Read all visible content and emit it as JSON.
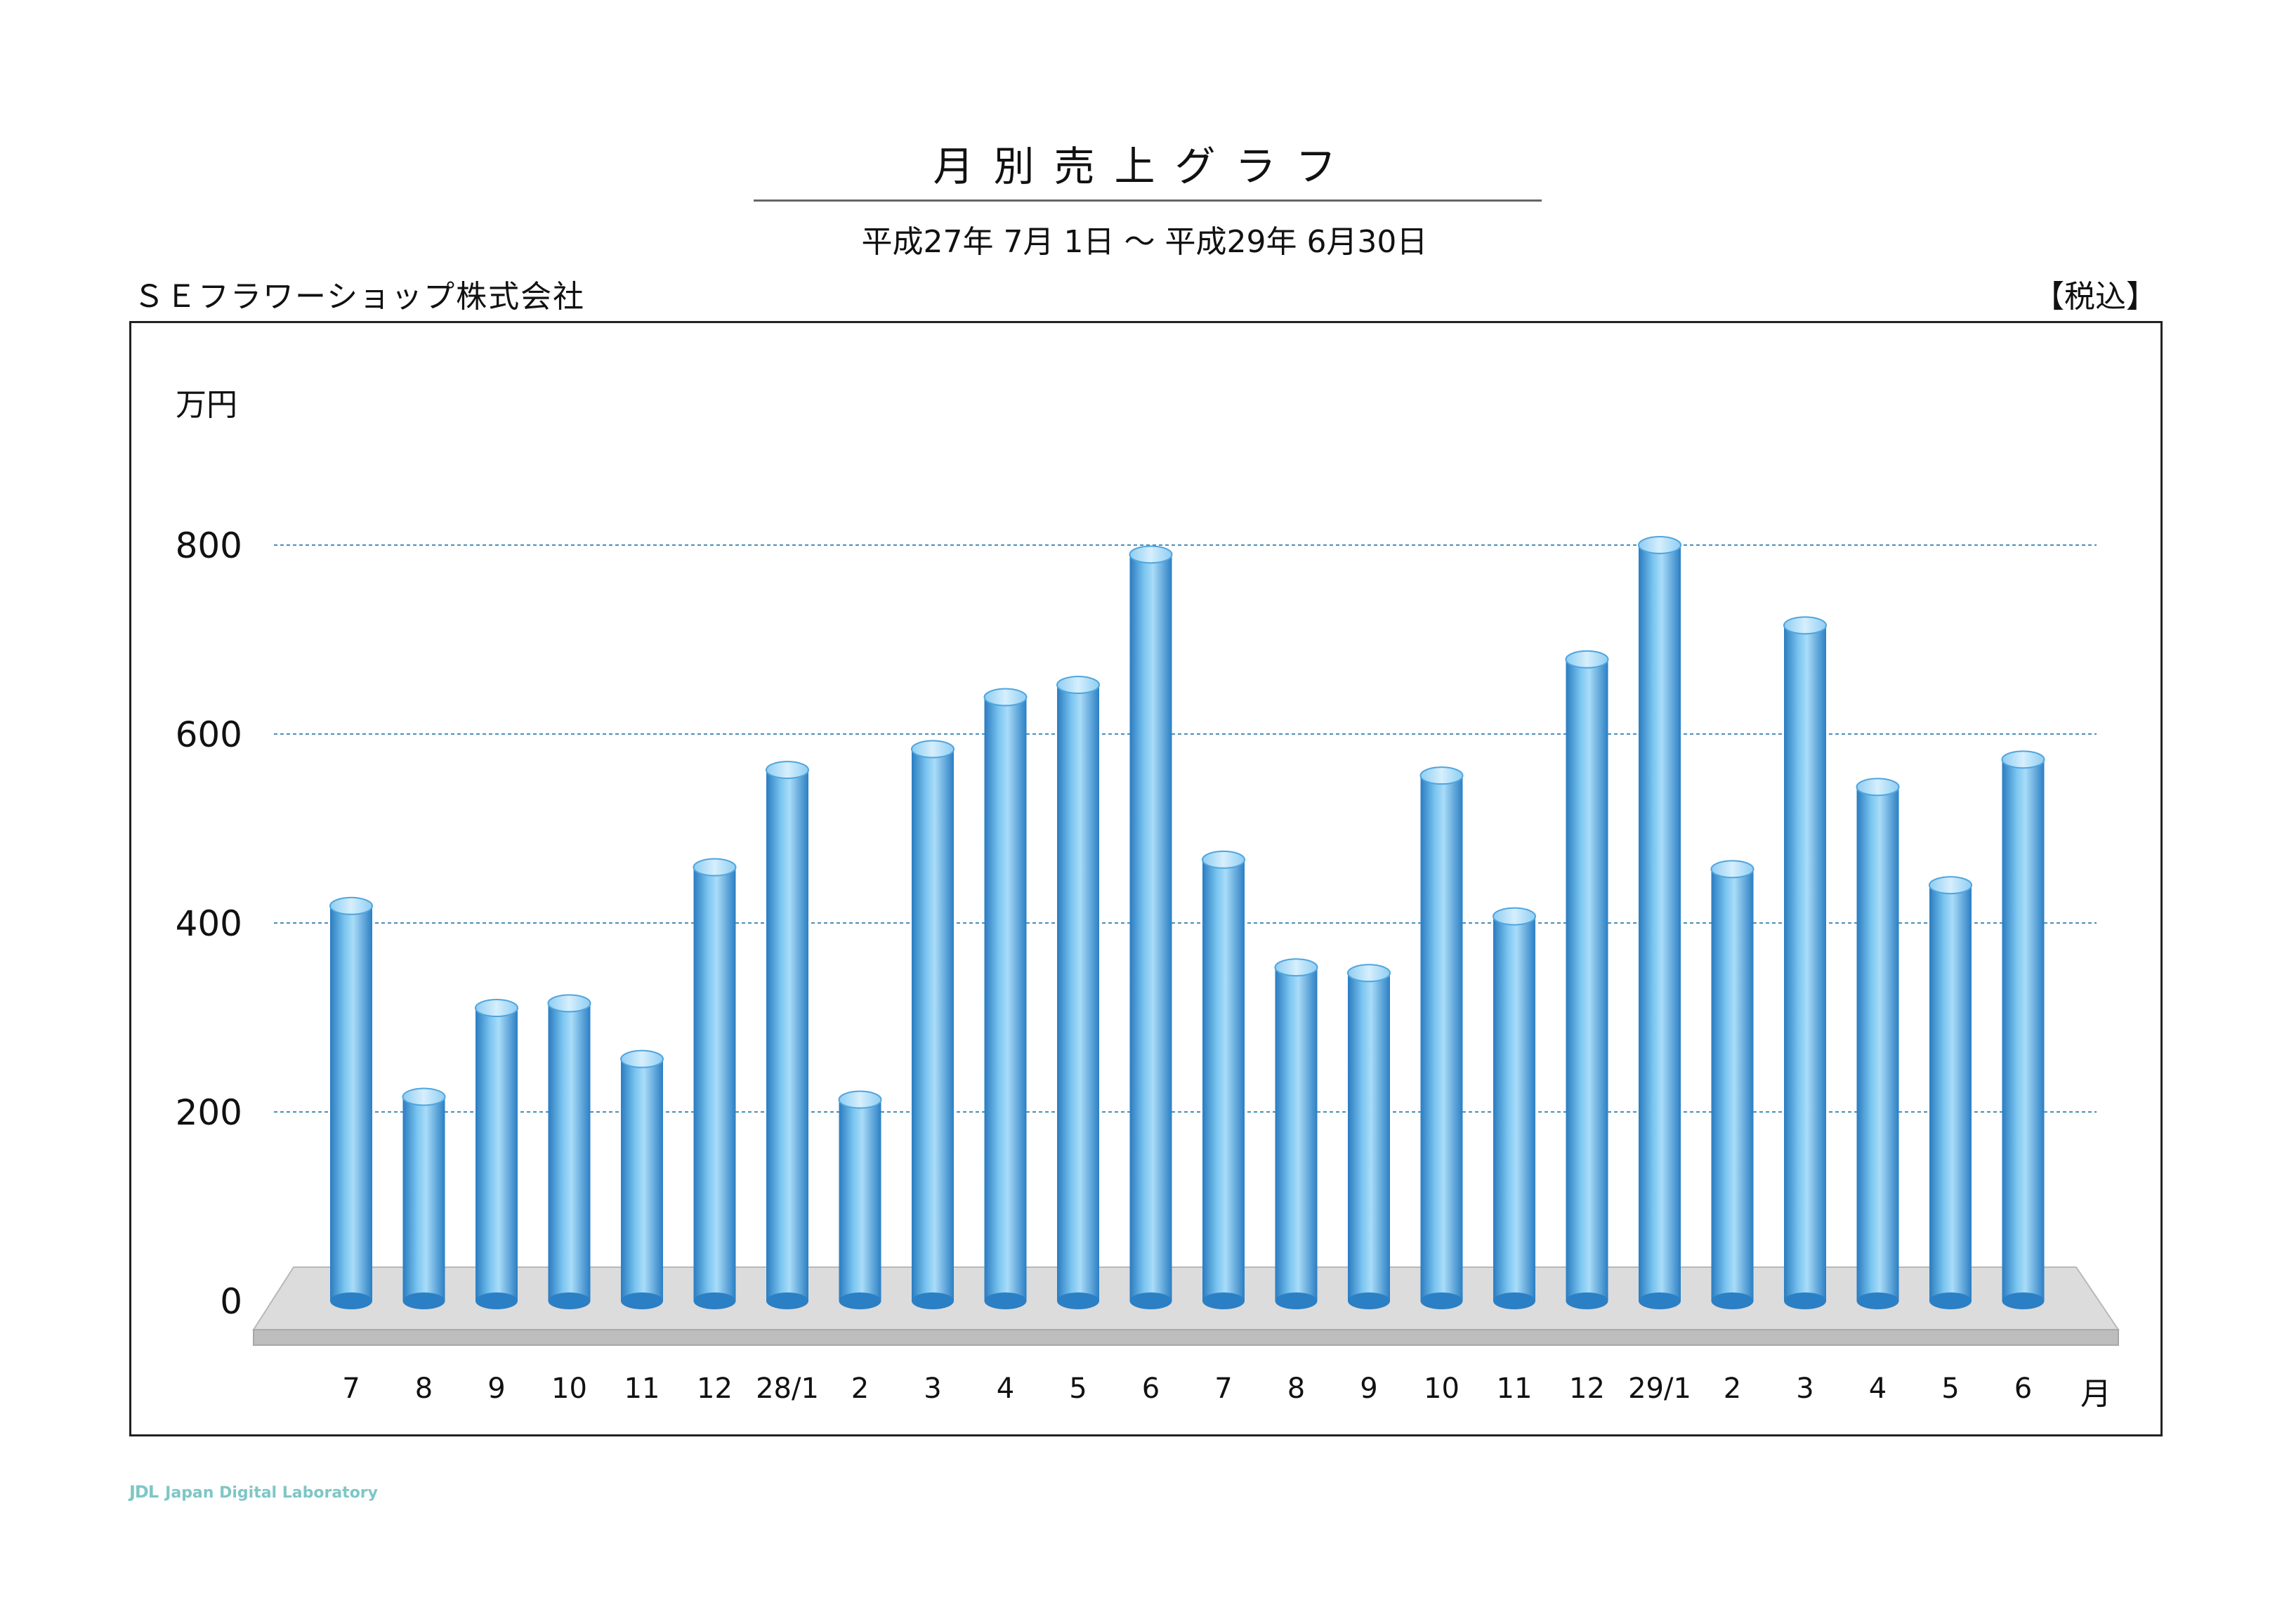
{
  "header": {
    "title": "月別売上グラフ",
    "period": "平成27年 7月 1日 〜 平成29年 6月30日",
    "company": "ＳＥフラワーショップ株式会社",
    "tax_note": "【税込】"
  },
  "footer": {
    "logo_mark": "JDL",
    "logo_text": "Japan Digital Laboratory"
  },
  "chart_data": {
    "type": "bar",
    "title": "月別売上グラフ",
    "ylabel": "万円",
    "xlabel": "月",
    "ylim": [
      0,
      800
    ],
    "yticks": [
      0,
      200,
      400,
      600,
      800
    ],
    "grid": true,
    "categories": [
      "7",
      "8",
      "9",
      "10",
      "11",
      "12",
      "28/1",
      "2",
      "3",
      "4",
      "5",
      "6",
      "7",
      "8",
      "9",
      "10",
      "11",
      "12",
      "29/1",
      "2",
      "3",
      "4",
      "5",
      "6"
    ],
    "values": [
      418,
      216,
      310,
      315,
      256,
      459,
      562,
      213,
      584,
      639,
      652,
      790,
      467,
      353,
      347,
      556,
      407,
      679,
      800,
      457,
      715,
      544,
      440,
      573
    ],
    "colors": {
      "bar": "#3f97d8",
      "bar_highlight": "#a9dcf8",
      "floor": "#d9d9d9",
      "grid": "#4a90b8"
    }
  }
}
